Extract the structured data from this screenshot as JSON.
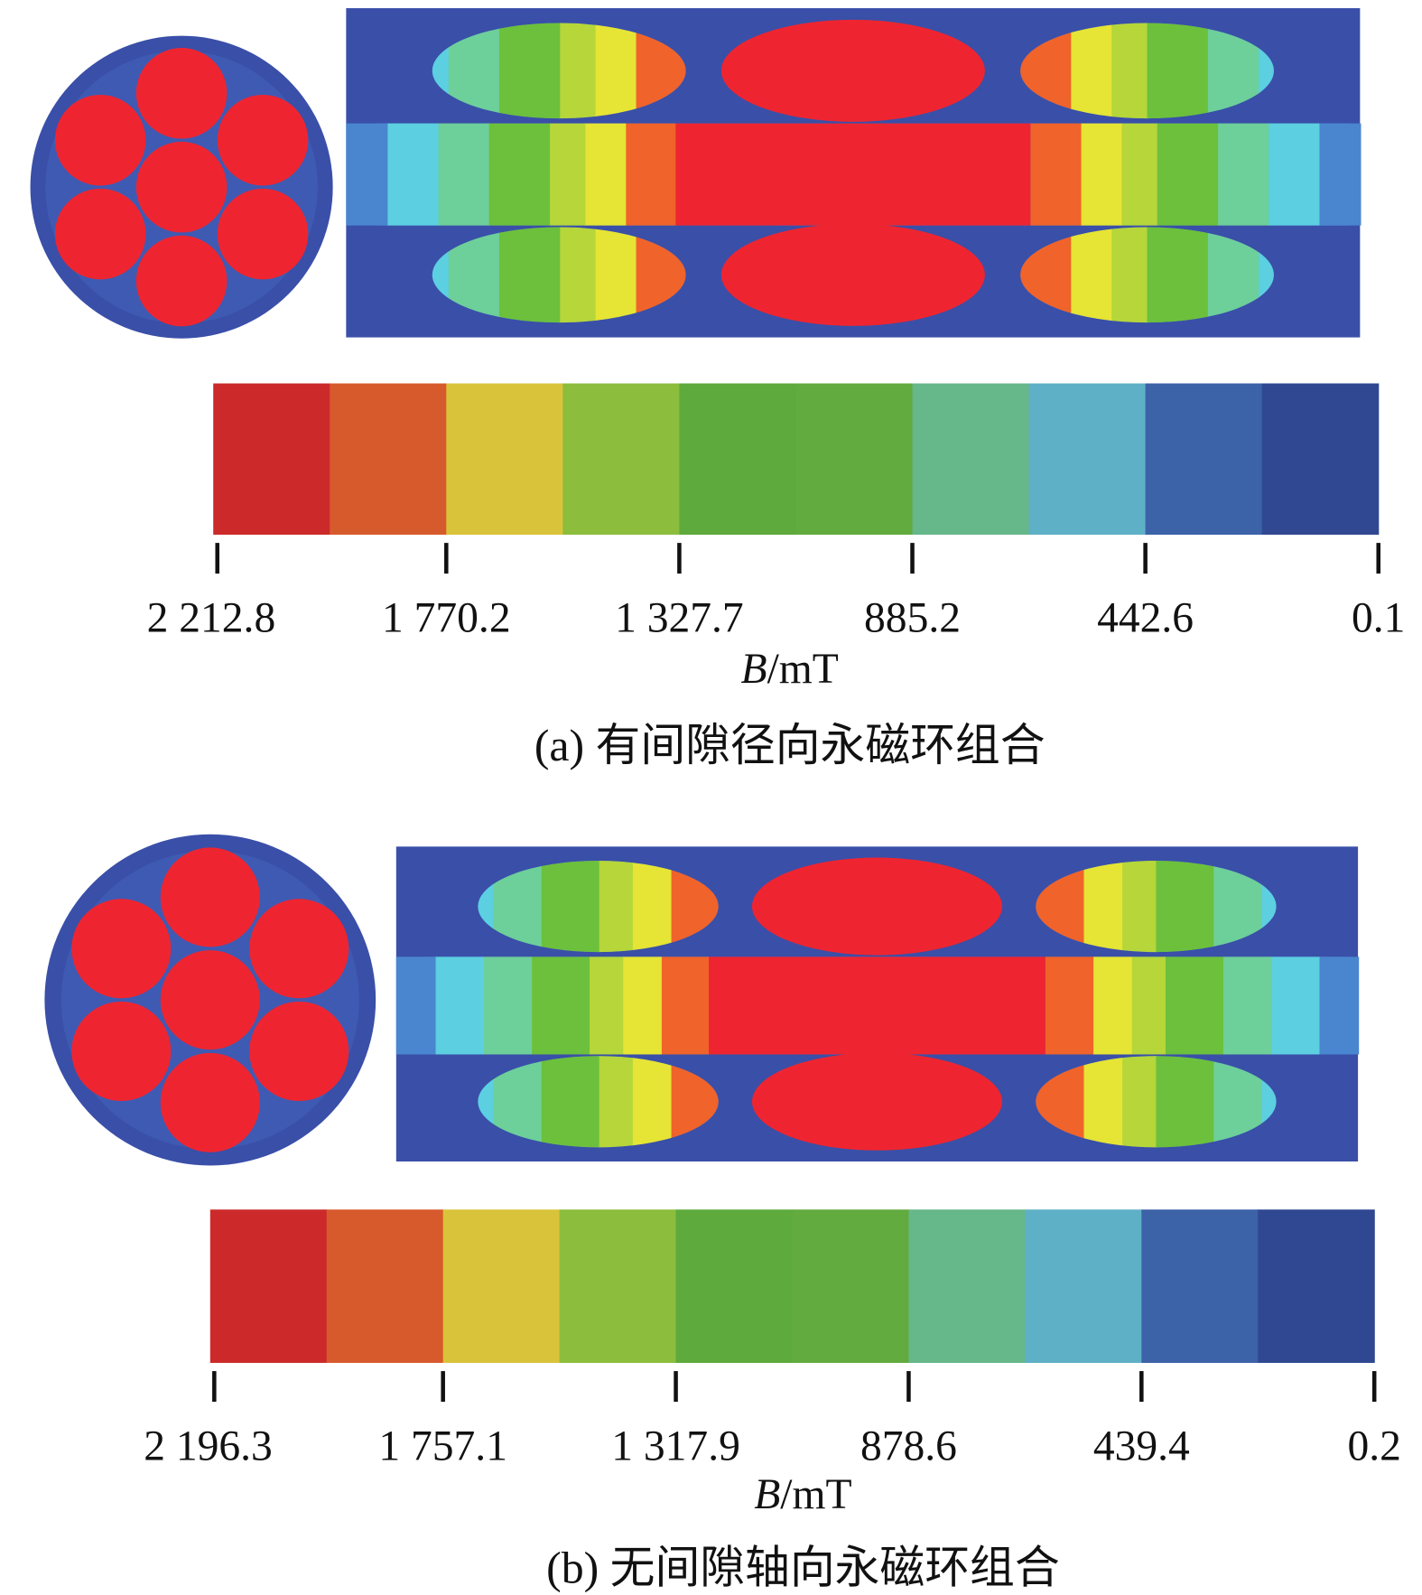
{
  "panels": [
    {
      "colorbar": {
        "ticks": [
          "2 212.8",
          "1 770.2",
          "1 327.7",
          "885.2",
          "442.6",
          "0.1"
        ]
      },
      "axis_label": {
        "symbol": "B",
        "unit": "/mT"
      },
      "caption": "(a) 有间隙径向永磁环组合"
    },
    {
      "colorbar": {
        "ticks": [
          "2 196.3",
          "1 757.1",
          "1 317.9",
          "878.6",
          "439.4",
          "0.2"
        ]
      },
      "axis_label": {
        "symbol": "B",
        "unit": "/mT"
      },
      "caption": "(b) 无间隙轴向永磁环组合"
    }
  ]
}
